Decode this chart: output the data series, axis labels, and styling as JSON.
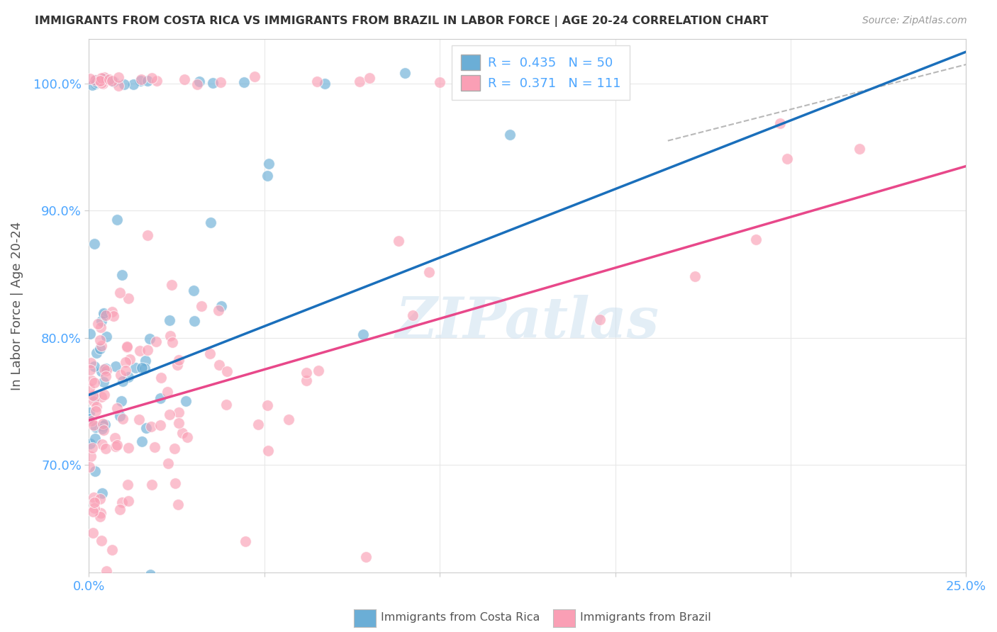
{
  "title": "IMMIGRANTS FROM COSTA RICA VS IMMIGRANTS FROM BRAZIL IN LABOR FORCE | AGE 20-24 CORRELATION CHART",
  "source": "Source: ZipAtlas.com",
  "ylabel": "In Labor Force | Age 20-24",
  "xlim": [
    0.0,
    0.25
  ],
  "ylim": [
    0.615,
    1.035
  ],
  "yticks": [
    0.7,
    0.8,
    0.9,
    1.0
  ],
  "ytick_labels": [
    "70.0%",
    "80.0%",
    "90.0%",
    "100.0%"
  ],
  "xticks": [
    0.0,
    0.05,
    0.1,
    0.15,
    0.2,
    0.25
  ],
  "xtick_labels": [
    "0.0%",
    "",
    "",
    "",
    "",
    "25.0%"
  ],
  "blue_R": 0.435,
  "blue_N": 50,
  "pink_R": 0.371,
  "pink_N": 111,
  "blue_color": "#6baed6",
  "pink_color": "#fa9fb5",
  "blue_line_color": "#1a6fbb",
  "pink_line_color": "#e8488a",
  "dashed_line_color": "#b8b8b8",
  "title_color": "#333333",
  "axis_color": "#4da6ff",
  "watermark": "ZIPatlas",
  "background_color": "#ffffff",
  "grid_color": "#e8e8e8"
}
